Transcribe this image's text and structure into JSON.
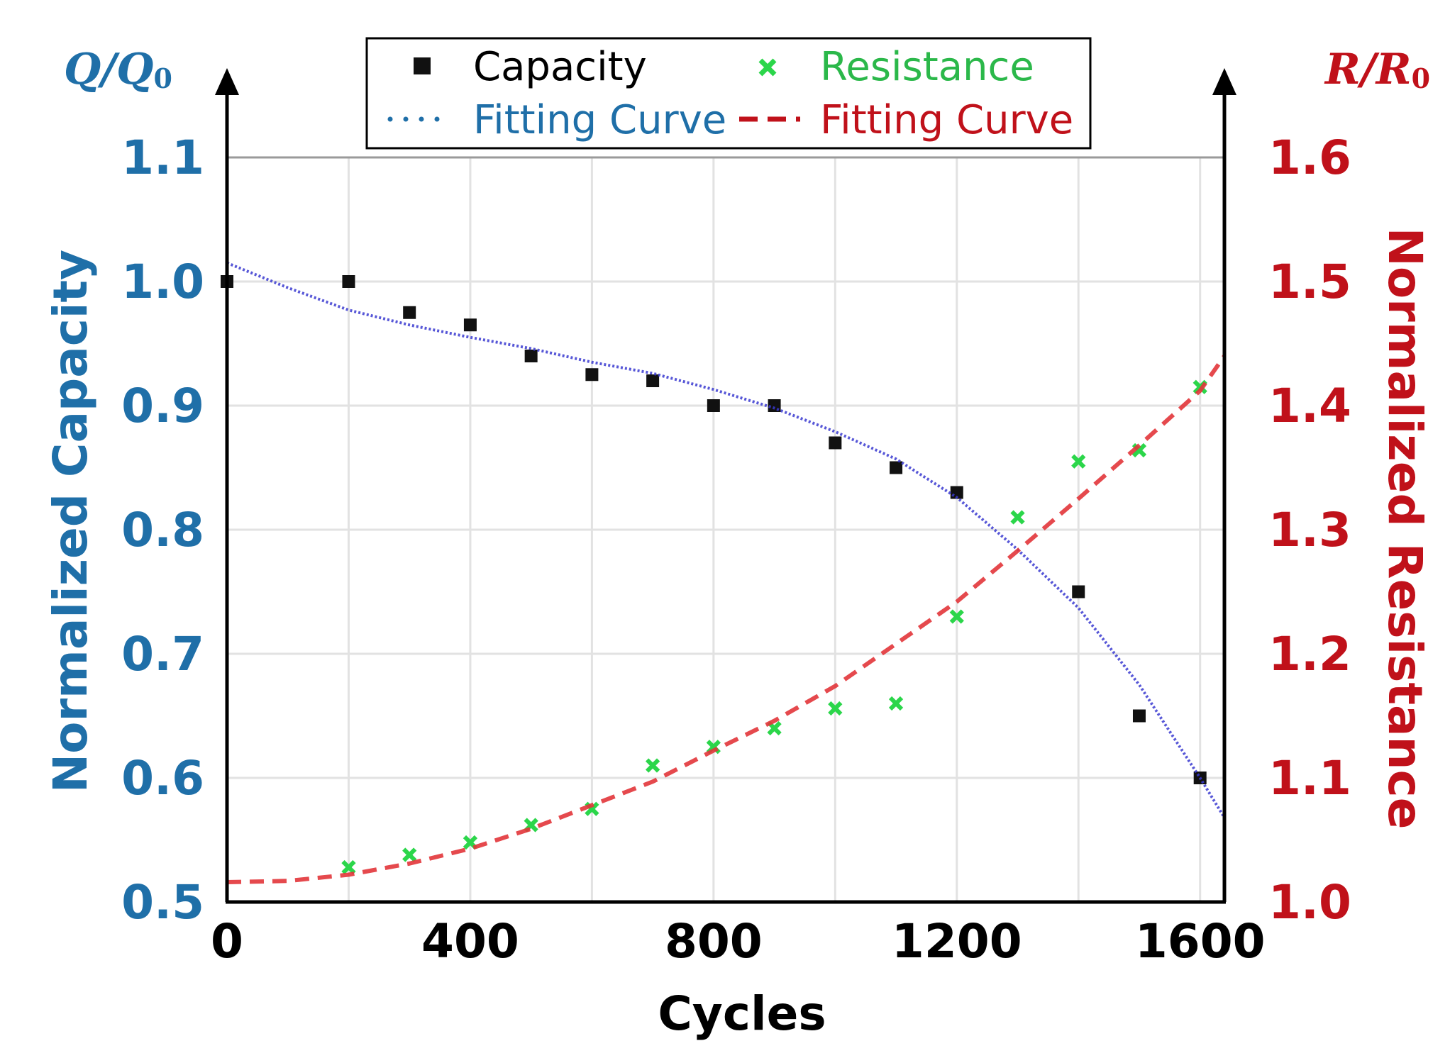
{
  "chart_data": {
    "type": "scatter",
    "title": "",
    "xlabel": "Cycles",
    "ylabel_left": "Normalized Capacity",
    "ylabel_right": "Normalized Resistance",
    "left_axis_symbol": {
      "main": "Q/Q",
      "sub": "0"
    },
    "right_axis_symbol": {
      "main": "R/R",
      "sub": "0"
    },
    "xlim": [
      0,
      1640
    ],
    "ylim_left": [
      0.5,
      1.1
    ],
    "ylim_right": [
      1.0,
      1.6
    ],
    "x_ticks": [
      0,
      400,
      800,
      1200,
      1600
    ],
    "x_tick_labels": [
      "0",
      "400",
      "800",
      "1200",
      "1600"
    ],
    "y_left_ticks": [
      0.5,
      0.6,
      0.7,
      0.8,
      0.9,
      1.0,
      1.1
    ],
    "y_left_tick_labels": [
      "0.5",
      "0.6",
      "0.7",
      "0.8",
      "0.9",
      "1.0",
      "1.1"
    ],
    "y_right_ticks": [
      1.0,
      1.1,
      1.2,
      1.3,
      1.4,
      1.5,
      1.6
    ],
    "y_right_tick_labels": [
      "1.0",
      "1.1",
      "1.2",
      "1.3",
      "1.4",
      "1.5",
      "1.6"
    ],
    "grid": true,
    "legend_position": "top-center",
    "series": [
      {
        "name": "Capacity",
        "axis": "left",
        "marker": "square",
        "color": "#111111",
        "label_color": "#000000",
        "x": [
          0,
          200,
          300,
          400,
          500,
          600,
          700,
          800,
          900,
          1000,
          1100,
          1200,
          1400,
          1500,
          1600
        ],
        "y": [
          1.0,
          1.0,
          0.975,
          0.965,
          0.94,
          0.925,
          0.92,
          0.9,
          0.9,
          0.87,
          0.85,
          0.83,
          0.75,
          0.65,
          0.6
        ]
      },
      {
        "name": "Resistance",
        "axis": "right",
        "marker": "x",
        "color": "#2bd64a",
        "label_color": "#2bb84a",
        "x": [
          200,
          300,
          400,
          500,
          600,
          700,
          800,
          900,
          1000,
          1100,
          1200,
          1300,
          1400,
          1500,
          1600
        ],
        "y": [
          1.028,
          1.038,
          1.048,
          1.062,
          1.075,
          1.11,
          1.125,
          1.14,
          1.156,
          1.16,
          1.23,
          1.31,
          1.355,
          1.364,
          1.415
        ]
      },
      {
        "name": "Fitting Curve",
        "axis": "left",
        "style": "dotted",
        "color": "#3a3ad0",
        "label_color": "#1f6fa8",
        "x": [
          0,
          100,
          200,
          300,
          400,
          500,
          600,
          700,
          800,
          900,
          1000,
          1100,
          1200,
          1300,
          1400,
          1500,
          1600,
          1640
        ],
        "y": [
          1.015,
          0.995,
          0.977,
          0.965,
          0.955,
          0.946,
          0.935,
          0.926,
          0.913,
          0.898,
          0.879,
          0.857,
          0.826,
          0.784,
          0.737,
          0.675,
          0.6,
          0.568
        ]
      },
      {
        "name": "Fitting Curve",
        "axis": "right",
        "style": "dashed",
        "color": "#e2353a",
        "label_color": "#c0111a",
        "x": [
          0,
          100,
          200,
          300,
          400,
          500,
          600,
          700,
          800,
          900,
          1000,
          1100,
          1200,
          1300,
          1400,
          1500,
          1600,
          1640
        ],
        "y": [
          1.016,
          1.017,
          1.022,
          1.031,
          1.043,
          1.059,
          1.078,
          1.097,
          1.122,
          1.146,
          1.174,
          1.208,
          1.242,
          1.283,
          1.325,
          1.368,
          1.412,
          1.44
        ]
      }
    ]
  }
}
